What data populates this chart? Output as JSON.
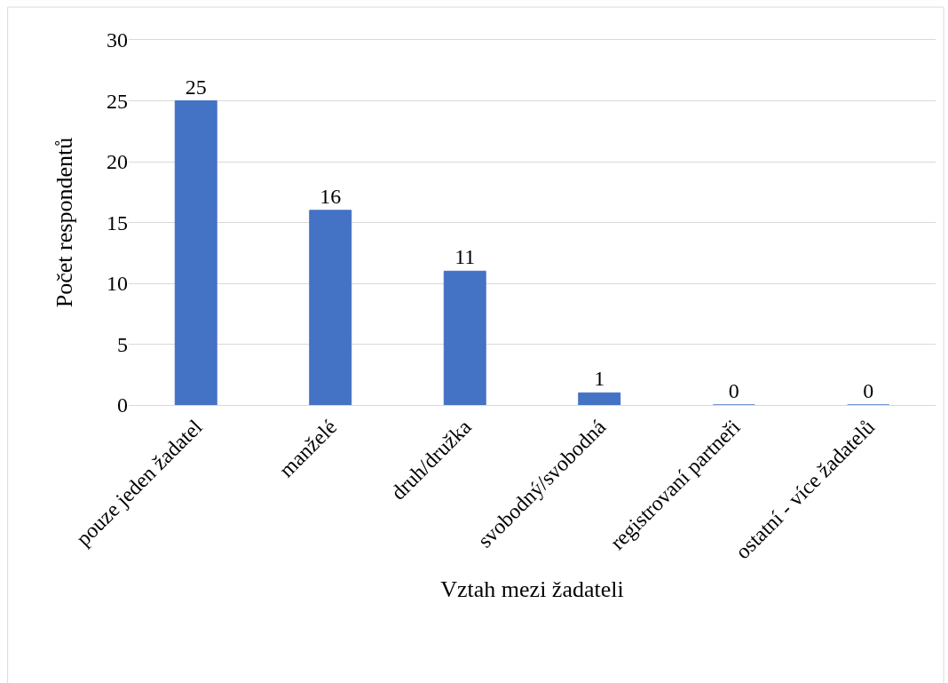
{
  "chart_data": {
    "type": "bar",
    "xlabel": "Vztah mezi žadateli",
    "ylabel": "Počet respondentů",
    "categories": [
      "pouze jeden žadatel",
      "manželé",
      "druh/družka",
      "svobodný/svobodná",
      "registrovaní partneři",
      "ostatní - více žadatelů"
    ],
    "values": [
      25,
      16,
      11,
      1,
      0,
      0
    ],
    "color": "#4472c4",
    "ylim": [
      0,
      30
    ],
    "yticks": [
      0,
      5,
      10,
      15,
      20,
      25,
      30
    ],
    "grid": "y",
    "data_labels": true
  }
}
